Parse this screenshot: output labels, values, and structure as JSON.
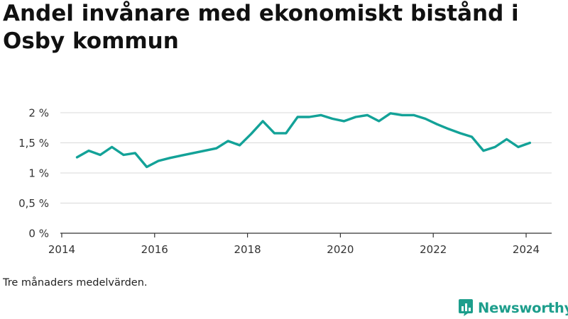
{
  "title": "Andel invånare med ekonomiskt bistånd i Osby kommun",
  "footnote": "Tre månaders medelvärden.",
  "brand": {
    "name": "Newsworthy",
    "color": "#1d9e8c",
    "icon": "bar-chart-speech-bubble-icon"
  },
  "chart_data": {
    "type": "line",
    "title": "Andel invånare med ekonomiskt bistånd i Osby kommun",
    "xlabel": "",
    "ylabel": "",
    "xlim": [
      2013.97,
      2024.55
    ],
    "ylim": [
      0,
      2
    ],
    "x_ticks": [
      2014,
      2016,
      2018,
      2020,
      2022,
      2024
    ],
    "y_ticks": [
      {
        "value": 0,
        "label": "0 %"
      },
      {
        "value": 0.5,
        "label": "0,5 %"
      },
      {
        "value": 1,
        "label": "1 %"
      },
      {
        "value": 1.5,
        "label": "1,5 %"
      },
      {
        "value": 2,
        "label": "2 %"
      }
    ],
    "grid": true,
    "color": "#13a298",
    "series": [
      {
        "x": [
          2014.33,
          2014.58,
          2014.83,
          2015.08,
          2015.33,
          2015.58,
          2015.83,
          2016.08,
          2016.33,
          2016.58,
          2016.83,
          2017.08,
          2017.33,
          2017.58,
          2017.83,
          2018.08,
          2018.33,
          2018.58,
          2018.83,
          2019.08,
          2019.33,
          2019.58,
          2019.83,
          2020.08,
          2020.33,
          2020.58,
          2020.83,
          2021.08,
          2021.33,
          2021.58,
          2021.83,
          2022.08,
          2022.33,
          2022.58,
          2022.83,
          2023.08,
          2023.33,
          2023.58,
          2023.83,
          2024.08
        ],
        "values": [
          1.26,
          1.37,
          1.3,
          1.43,
          1.3,
          1.33,
          1.1,
          1.2,
          1.25,
          1.29,
          1.33,
          1.37,
          1.41,
          1.53,
          1.46,
          1.65,
          1.86,
          1.66,
          1.66,
          1.93,
          1.93,
          1.96,
          1.9,
          1.86,
          1.93,
          1.96,
          1.86,
          1.99,
          1.96,
          1.96,
          1.9,
          1.81,
          1.73,
          1.66,
          1.6,
          1.37,
          1.43,
          1.56,
          1.43,
          1.5
        ]
      }
    ]
  }
}
